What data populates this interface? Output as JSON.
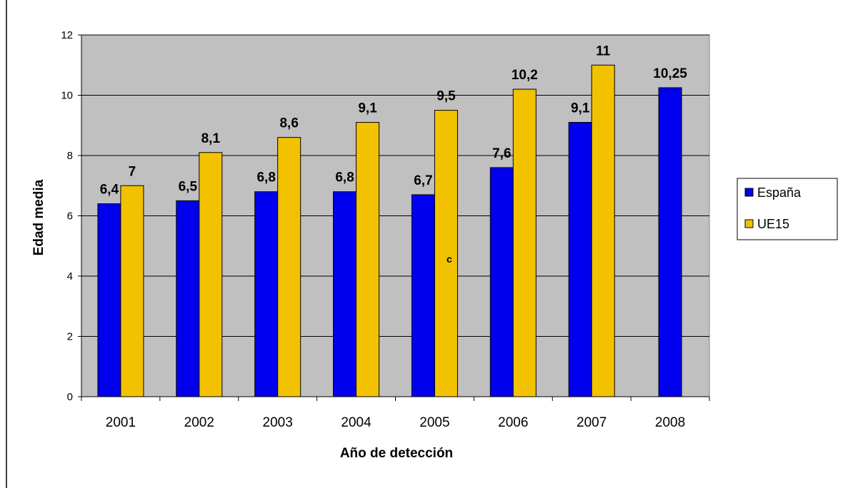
{
  "chart_data": {
    "type": "bar",
    "title": "",
    "xlabel": "Año de detección",
    "ylabel": "Edad media",
    "categories": [
      "2001",
      "2002",
      "2003",
      "2004",
      "2005",
      "2006",
      "2007",
      "2008"
    ],
    "series": [
      {
        "name": "España",
        "color": "#0000ee",
        "values": [
          6.4,
          6.5,
          6.8,
          6.8,
          6.7,
          7.6,
          9.1,
          10.25
        ],
        "labels": [
          "6,4",
          "6,5",
          "6,8",
          "6,8",
          "6,7",
          "7,6",
          "9,1",
          "10,25"
        ]
      },
      {
        "name": "UE15",
        "color": "#f2c200",
        "values": [
          7,
          8.1,
          8.6,
          9.1,
          9.5,
          10.2,
          11,
          null
        ],
        "labels": [
          "7",
          "8,1",
          "8,6",
          "9,1",
          "9,5",
          "10,2",
          "11",
          ""
        ]
      }
    ],
    "ylim": [
      0,
      12
    ],
    "yticks": [
      "0",
      "2",
      "4",
      "6",
      "8",
      "10",
      "12"
    ],
    "grid": true,
    "legend_position": "right",
    "plot_background": "#c0c0c0",
    "stray_annotation": "c"
  }
}
